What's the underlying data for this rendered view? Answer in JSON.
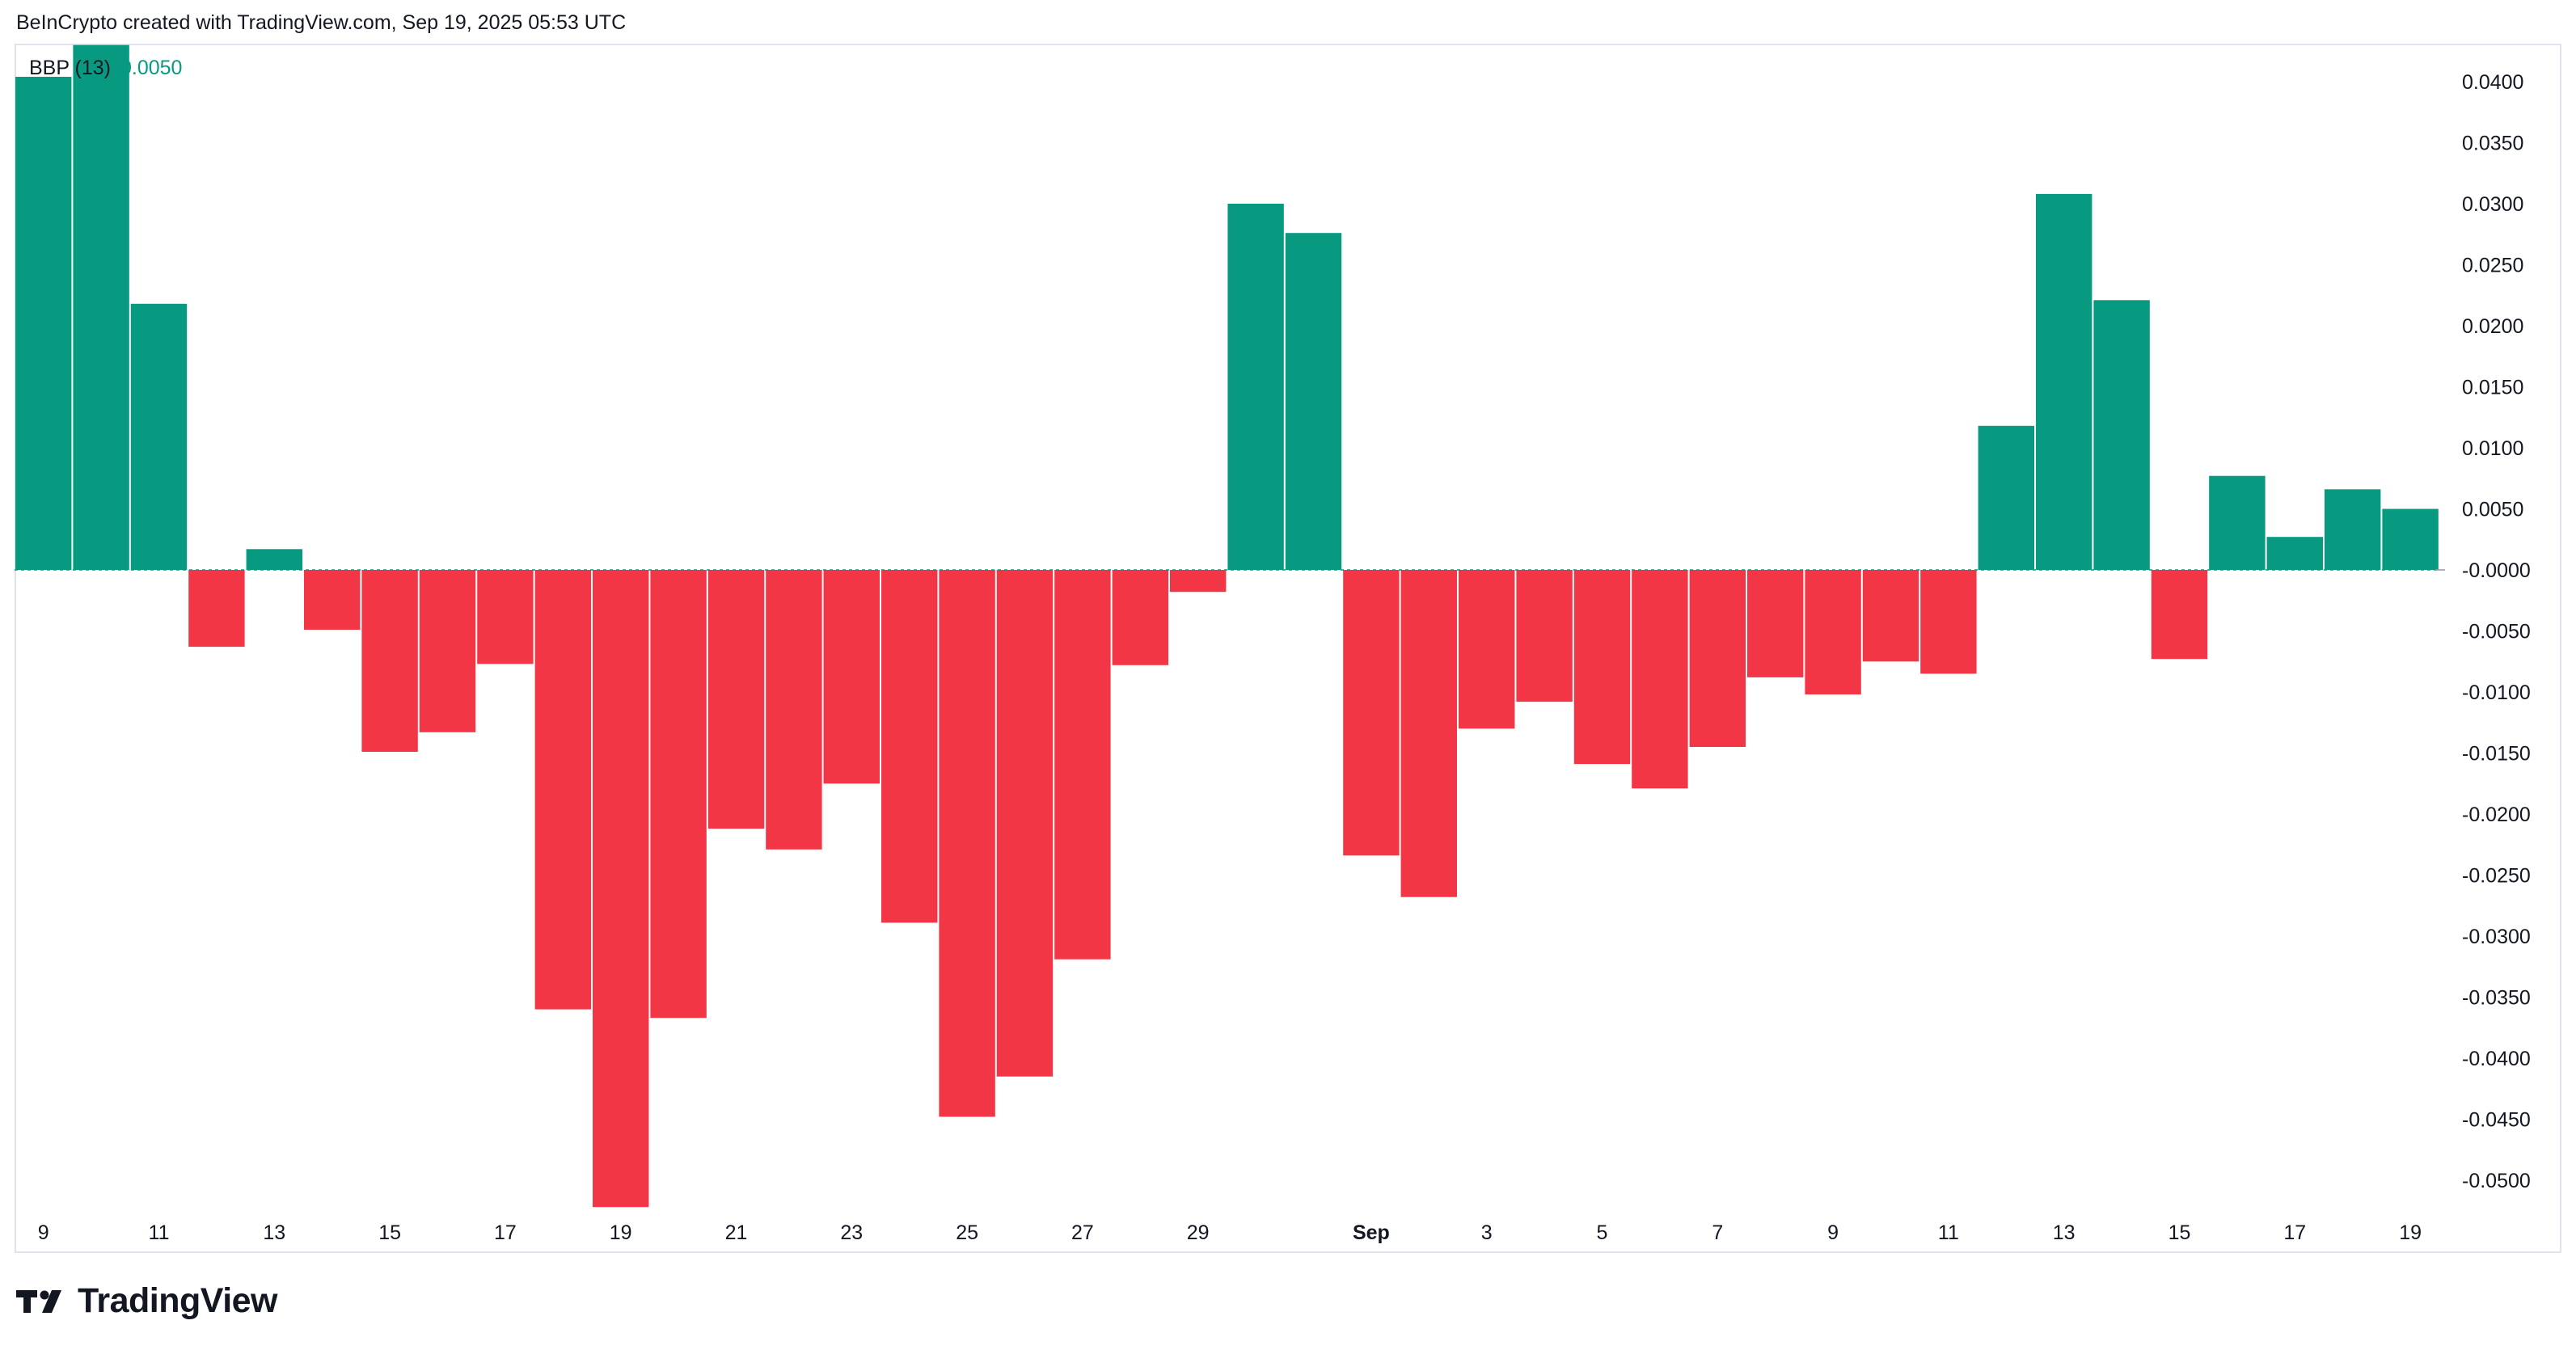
{
  "header": {
    "credit": "BeInCrypto created with TradingView.com, Sep 19, 2025 05:53 UTC"
  },
  "legend": {
    "name": "BBP (13)",
    "value": "0.0050"
  },
  "brand": {
    "name": "TradingView",
    "icon": "tradingview-logo-icon"
  },
  "colors": {
    "positive": "#089981",
    "negative": "#f23645",
    "axis_text": "#131722",
    "border": "#e0e3eb"
  },
  "chart_data": {
    "type": "bar",
    "title": "",
    "xlabel": "",
    "ylabel": "",
    "ylim": [
      -0.0522,
      0.043
    ],
    "grid": false,
    "legend_placement": "top-left",
    "series": [
      {
        "name": "BBP (13)",
        "categories": [
          "Aug 9",
          "Aug 10",
          "Aug 11",
          "Aug 12",
          "Aug 13",
          "Aug 14",
          "Aug 15",
          "Aug 16",
          "Aug 17",
          "Aug 18",
          "Aug 19",
          "Aug 20",
          "Aug 21",
          "Aug 22",
          "Aug 23",
          "Aug 24",
          "Aug 25",
          "Aug 26",
          "Aug 27",
          "Aug 28",
          "Aug 29",
          "Aug 30",
          "Aug 31",
          "Sep 1",
          "Sep 2",
          "Sep 3",
          "Sep 4",
          "Sep 5",
          "Sep 6",
          "Sep 7",
          "Sep 8",
          "Sep 9",
          "Sep 10",
          "Sep 11",
          "Sep 12",
          "Sep 13",
          "Sep 14",
          "Sep 15",
          "Sep 16",
          "Sep 17",
          "Sep 18",
          "Sep 19"
        ],
        "values": [
          0.0404,
          0.043,
          0.0218,
          -0.0063,
          0.0017,
          -0.0049,
          -0.0149,
          -0.0133,
          -0.0077,
          -0.036,
          -0.0522,
          -0.0367,
          -0.0212,
          -0.0229,
          -0.0175,
          -0.0289,
          -0.0448,
          -0.0415,
          -0.0319,
          -0.0078,
          -0.0018,
          0.03,
          0.0276,
          -0.0234,
          -0.0268,
          -0.013,
          -0.0108,
          -0.0159,
          -0.0179,
          -0.0145,
          -0.0088,
          -0.0102,
          -0.0075,
          -0.0085,
          0.0118,
          0.0308,
          0.0221,
          -0.0073,
          0.0077,
          0.0027,
          0.0066,
          0.005
        ]
      }
    ],
    "x_tick_labels": [
      {
        "label": "9",
        "category": "Aug 9"
      },
      {
        "label": "11",
        "category": "Aug 11"
      },
      {
        "label": "13",
        "category": "Aug 13"
      },
      {
        "label": "15",
        "category": "Aug 15"
      },
      {
        "label": "17",
        "category": "Aug 17"
      },
      {
        "label": "19",
        "category": "Aug 19"
      },
      {
        "label": "21",
        "category": "Aug 21"
      },
      {
        "label": "23",
        "category": "Aug 23"
      },
      {
        "label": "25",
        "category": "Aug 25"
      },
      {
        "label": "27",
        "category": "Aug 27"
      },
      {
        "label": "29",
        "category": "Aug 29"
      },
      {
        "label": "Sep",
        "category": "Sep 1",
        "bold": true
      },
      {
        "label": "3",
        "category": "Sep 3"
      },
      {
        "label": "5",
        "category": "Sep 5"
      },
      {
        "label": "7",
        "category": "Sep 7"
      },
      {
        "label": "9",
        "category": "Sep 9"
      },
      {
        "label": "11",
        "category": "Sep 11"
      },
      {
        "label": "13",
        "category": "Sep 13"
      },
      {
        "label": "15",
        "category": "Sep 15"
      },
      {
        "label": "17",
        "category": "Sep 17"
      },
      {
        "label": "19",
        "category": "Sep 19"
      }
    ],
    "y_ticks": [
      {
        "value": 0.04,
        "label": "0.0400"
      },
      {
        "value": 0.035,
        "label": "0.0350"
      },
      {
        "value": 0.03,
        "label": "0.0300"
      },
      {
        "value": 0.025,
        "label": "0.0250"
      },
      {
        "value": 0.02,
        "label": "0.0200"
      },
      {
        "value": 0.015,
        "label": "0.0150"
      },
      {
        "value": 0.01,
        "label": "0.0100"
      },
      {
        "value": 0.005,
        "label": "0.0050"
      },
      {
        "value": 0.0,
        "label": "-0.0000"
      },
      {
        "value": -0.005,
        "label": "-0.0050"
      },
      {
        "value": -0.01,
        "label": "-0.0100"
      },
      {
        "value": -0.015,
        "label": "-0.0150"
      },
      {
        "value": -0.02,
        "label": "-0.0200"
      },
      {
        "value": -0.025,
        "label": "-0.0250"
      },
      {
        "value": -0.03,
        "label": "-0.0300"
      },
      {
        "value": -0.035,
        "label": "-0.0350"
      },
      {
        "value": -0.04,
        "label": "-0.0400"
      },
      {
        "value": -0.045,
        "label": "-0.0450"
      },
      {
        "value": -0.05,
        "label": "-0.0500"
      }
    ]
  }
}
